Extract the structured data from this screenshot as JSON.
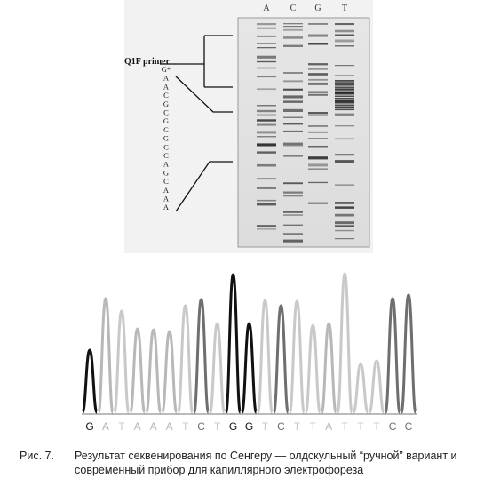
{
  "gel": {
    "lanes": [
      "A",
      "C",
      "G",
      "T"
    ],
    "primer_label": "Q1F primer",
    "sequence": [
      "G*",
      "A",
      "A",
      "C",
      "G",
      "C",
      "G",
      "C",
      "G",
      "C",
      "C",
      "A",
      "G",
      "C",
      "A",
      "A",
      "A"
    ]
  },
  "chromatogram": {
    "bases": [
      "G",
      "A",
      "T",
      "A",
      "A",
      "A",
      "T",
      "C",
      "T",
      "G",
      "G",
      "T",
      "C",
      "T",
      "T",
      "A",
      "T",
      "T",
      "T",
      "C",
      "C"
    ],
    "colors": {
      "A": "#b8b8b8",
      "C": "#6f6f6f",
      "G": "#111111",
      "T": "#c9c9c9"
    }
  },
  "caption": {
    "number": "Рис. 7.",
    "text": "Результат секвенирования по Сенгеру — олдскульный “ручной” вариант и современный прибор для капиллярного электрофореза"
  }
}
